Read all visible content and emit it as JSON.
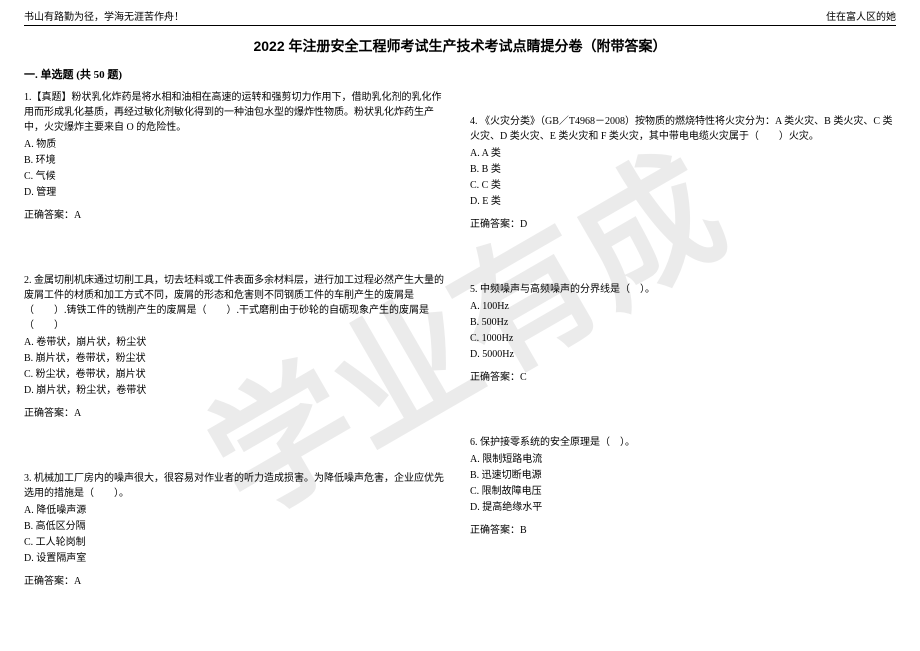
{
  "watermark": "学业有成",
  "header_left": "书山有路勤为径，学海无涯苦作舟！",
  "header_right": "住在富人区的她",
  "title": "2022 年注册安全工程师考试生产技术考试点睛提分卷（附带答案）",
  "section_heading": "一. 单选题 (共 50 题)",
  "left_questions": [
    {
      "text": "1.【真题】粉状乳化炸药是将水相和油相在高速的运转和强剪切力作用下，借助乳化剂的乳化作用而形成乳化基质，再经过敏化剂敏化得到的一种油包水型的爆炸性物质。粉状乳化炸药生产中，火灾爆炸主要来自 O 的危险性。",
      "options": [
        "A. 物质",
        "B. 环境",
        "C. 气候",
        "D. 管理"
      ],
      "answer": "正确答案：A"
    },
    {
      "text": "2. 金属切削机床通过切削工具，切去坯料或工件表面多余材料层，进行加工过程必然产生大量的废屑工件的材质和加工方式不同，废屑的形态和危害则不同钢质工件的车削产生的废屑是（　　）.铸铁工件的铣削产生的废屑是（　　）.干式磨削由于砂轮的自砺现象产生的废屑是（　　）",
      "options": [
        "A. 卷带状，崩片状，粉尘状",
        "B. 崩片状，卷带状，粉尘状",
        "C. 粉尘状，卷带状，崩片状",
        "D. 崩片状，粉尘状，卷带状"
      ],
      "answer": "正确答案：A"
    },
    {
      "text": "3. 机械加工厂房内的噪声很大，很容易对作业者的听力造成损害。为降低噪声危害，企业应优先选用的措施是（　　）。",
      "options": [
        "A. 降低噪声源",
        "B. 高低区分隔",
        "C. 工人轮岗制",
        "D. 设置隔声室"
      ],
      "answer": "正确答案：A"
    }
  ],
  "right_questions": [
    {
      "text": "4. 《火灾分类》（GB／T4968－2008）按物质的燃烧特性将火灾分为：A 类火灾、B 类火灾、C 类火灾、D 类火灾、E 类火灾和 F 类火灾，其中带电电缆火灾属于（　　）火灾。",
      "options": [
        "A. A 类",
        "B. B 类",
        "C. C 类",
        "D. E 类"
      ],
      "answer": "正确答案：D"
    },
    {
      "text": "5. 中频噪声与高频噪声的分界线是（　）。",
      "options": [
        "A. 100Hz",
        "B. 500Hz",
        "C. 1000Hz",
        "D. 5000Hz"
      ],
      "answer": "正确答案：C"
    },
    {
      "text": "6. 保护接零系统的安全原理是（　）。",
      "options": [
        "A. 限制短路电流",
        "B. 迅速切断电源",
        "C. 限制故障电压",
        "D. 提高绝缘水平"
      ],
      "answer": "正确答案：B"
    }
  ]
}
